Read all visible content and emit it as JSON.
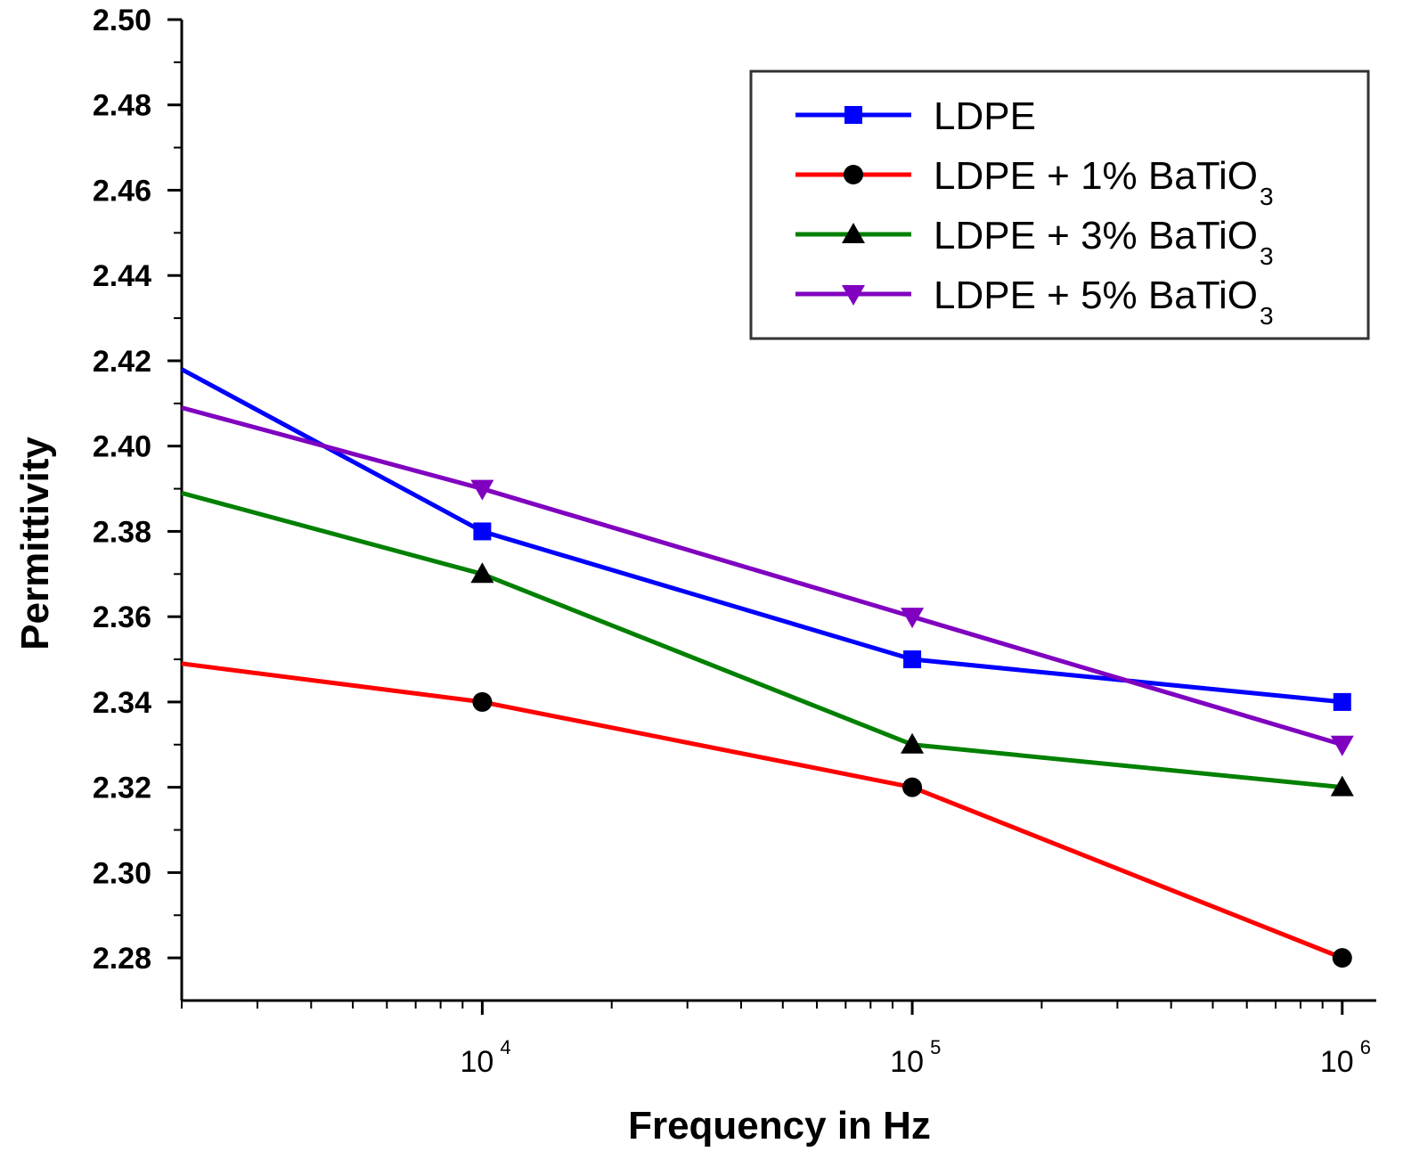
{
  "chart_data": {
    "type": "line",
    "title": "",
    "xlabel": "Frequency in Hz",
    "ylabel": "Permittivity",
    "x_scale": "log",
    "xlim": [
      2000,
      1200000
    ],
    "ylim": [
      2.27,
      2.5
    ],
    "y_ticks": [
      "2.28",
      "2.30",
      "2.32",
      "2.34",
      "2.36",
      "2.38",
      "2.40",
      "2.42",
      "2.44",
      "2.46",
      "2.48",
      "2.50"
    ],
    "x_ticks": [
      {
        "value": 10000,
        "base": "10",
        "exp": "4"
      },
      {
        "value": 100000,
        "base": "10",
        "exp": "5"
      },
      {
        "value": 1000000,
        "base": "10",
        "exp": "6"
      }
    ],
    "grid": false,
    "legend_position": "top-right",
    "x": [
      2000,
      10000,
      100000,
      1000000
    ],
    "series": [
      {
        "name": "LDPE",
        "label_main": "LDPE",
        "label_sub": "",
        "color": "#0000ff",
        "marker": "square",
        "values": [
          2.418,
          2.38,
          2.35,
          2.34
        ]
      },
      {
        "name": "LDPE + 1% BaTiO3",
        "label_main": "LDPE + 1% BaTiO",
        "label_sub": "3",
        "color": "#ff0000",
        "marker": "circle",
        "values": [
          2.349,
          2.34,
          2.32,
          2.28
        ]
      },
      {
        "name": "LDPE + 3% BaTiO3",
        "label_main": "LDPE + 3% BaTiO",
        "label_sub": "3",
        "color": "#008000",
        "marker": "triangle-up",
        "values": [
          2.389,
          2.37,
          2.33,
          2.32
        ]
      },
      {
        "name": "LDPE + 5% BaTiO3",
        "label_main": "LDPE + 5% BaTiO",
        "label_sub": "3",
        "color": "#8000c0",
        "marker": "triangle-down",
        "values": [
          2.409,
          2.39,
          2.36,
          2.33
        ]
      }
    ]
  }
}
